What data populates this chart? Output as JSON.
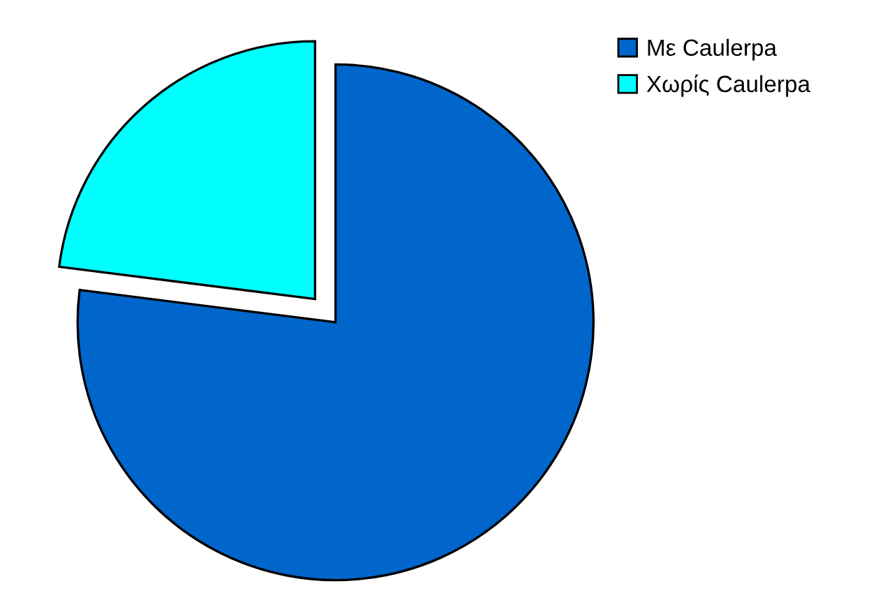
{
  "chart_data": {
    "type": "pie",
    "categories": [
      "Με Caulerpa",
      "Χωρίς Caulerpa"
    ],
    "values": [
      77,
      23
    ],
    "colors": [
      "#0066cc",
      "#00ffff"
    ],
    "legend": "top right"
  }
}
